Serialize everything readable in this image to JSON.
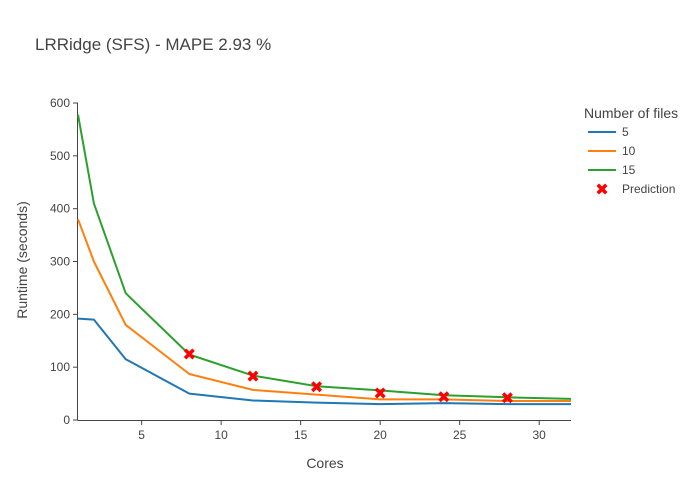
{
  "chart_data": {
    "type": "line",
    "title": "LRRidge (SFS) - MAPE 2.93 %",
    "xlabel": "Cores",
    "ylabel": "Runtime (seconds)",
    "xlim": [
      1,
      32
    ],
    "ylim": [
      0,
      600
    ],
    "xticks": [
      5,
      10,
      15,
      20,
      25,
      30
    ],
    "yticks": [
      0,
      100,
      200,
      300,
      400,
      500,
      600
    ],
    "grid": false,
    "legend": {
      "title": "Number of files",
      "position": "top-right"
    },
    "series": [
      {
        "name": "5",
        "color": "#1f77b4",
        "x": [
          1,
          2,
          4,
          8,
          12,
          16,
          20,
          24,
          28,
          32
        ],
        "y": [
          192,
          190,
          115,
          50,
          37,
          33,
          30,
          32,
          30,
          30
        ]
      },
      {
        "name": "10",
        "color": "#ff7f0e",
        "x": [
          1,
          2,
          4,
          8,
          12,
          16,
          20,
          24,
          28,
          32
        ],
        "y": [
          380,
          300,
          180,
          87,
          57,
          48,
          39,
          39,
          36,
          36
        ]
      },
      {
        "name": "15",
        "color": "#2ca02c",
        "x": [
          1,
          2,
          4,
          8,
          12,
          16,
          20,
          24,
          28,
          32
        ],
        "y": [
          578,
          410,
          240,
          124,
          84,
          64,
          56,
          47,
          43,
          40
        ]
      }
    ],
    "prediction": {
      "name": "Prediction",
      "color": "#ff0000",
      "marker": "x",
      "x": [
        8,
        12,
        16,
        20,
        24,
        28
      ],
      "y": [
        125,
        83,
        63,
        51,
        44,
        42
      ]
    }
  }
}
